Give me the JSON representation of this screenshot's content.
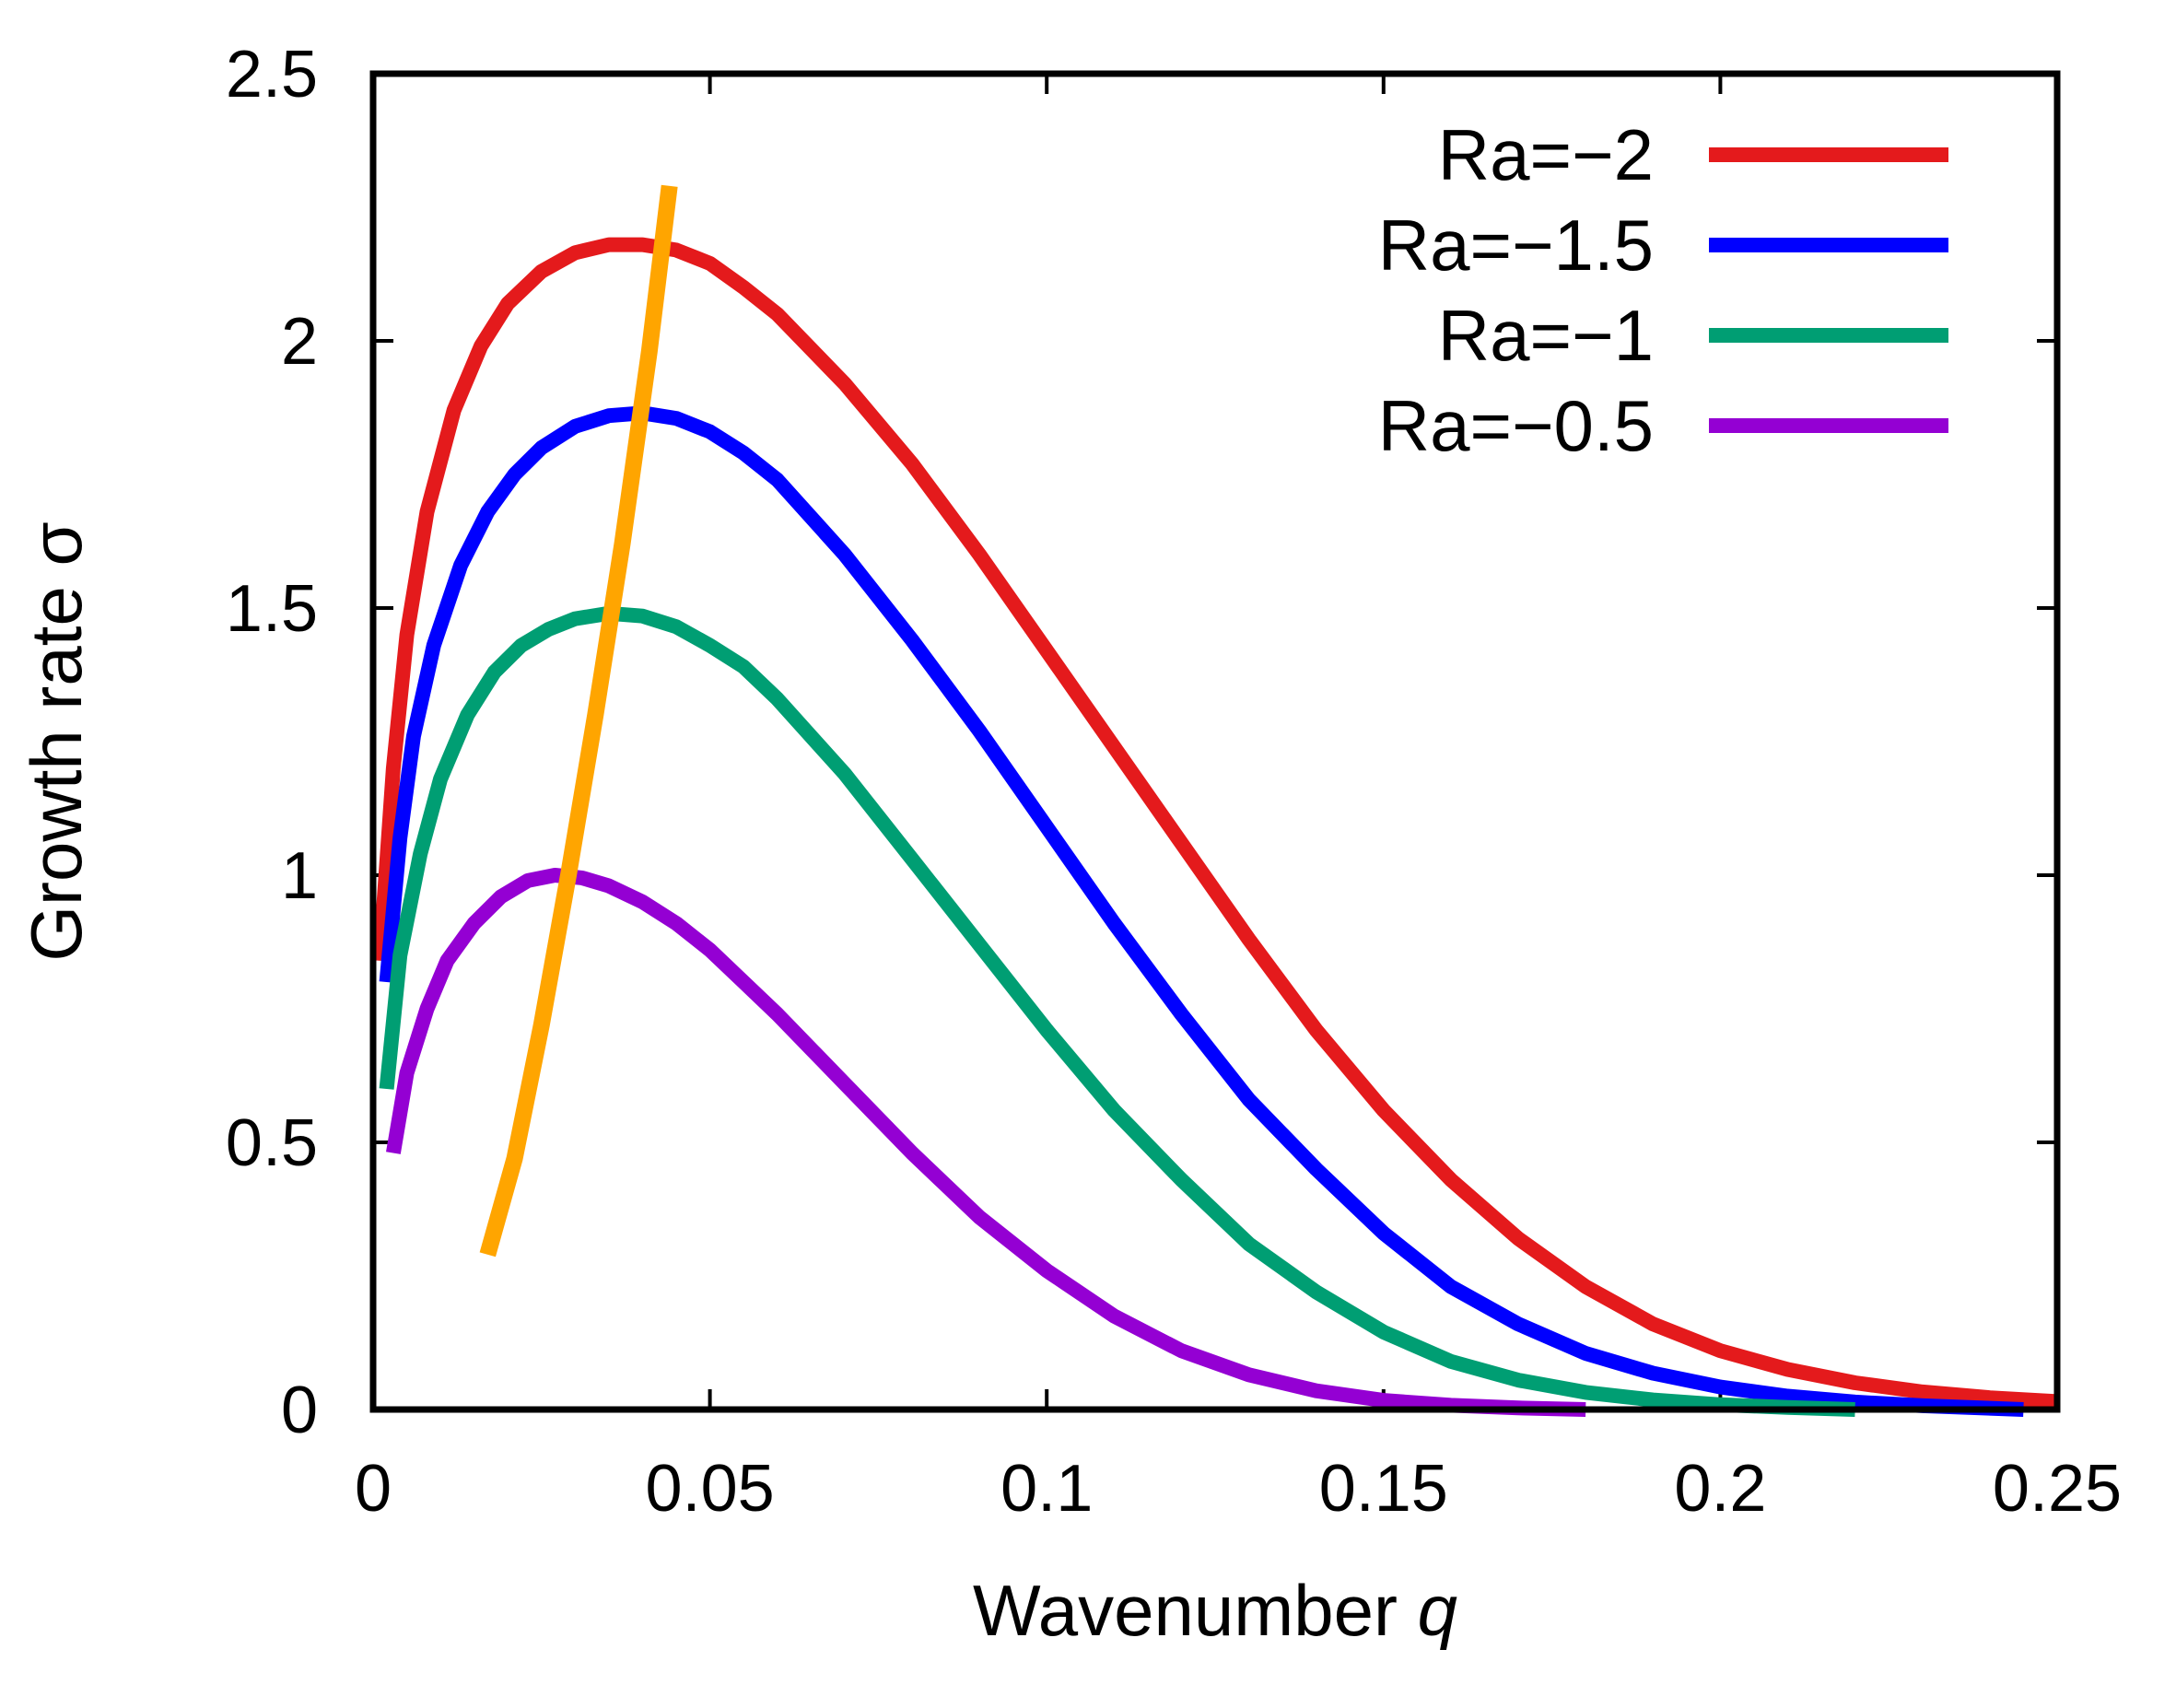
{
  "chart_data": {
    "type": "line",
    "xlabel": "Wavenumber",
    "xlabel_var": "q",
    "ylabel": "Growth rate σ",
    "xlim": [
      0,
      0.25
    ],
    "ylim": [
      0,
      2.5
    ],
    "xticks": [
      0,
      0.05,
      0.1,
      0.15,
      0.2,
      0.25
    ],
    "xtick_labels": [
      "0",
      "0.05",
      "0.1",
      "0.15",
      "0.2",
      "0.25"
    ],
    "yticks": [
      0,
      0.5,
      1,
      1.5,
      2,
      2.5
    ],
    "ytick_labels": [
      "0",
      "0.5",
      "1",
      "1.5",
      "2",
      "2.5"
    ],
    "legend_position": "top-right",
    "series": [
      {
        "name": "Ra=−2",
        "color": "#e41a1c",
        "x": [
          0.001,
          0.003,
          0.005,
          0.008,
          0.012,
          0.016,
          0.02,
          0.025,
          0.03,
          0.035,
          0.04,
          0.045,
          0.05,
          0.055,
          0.06,
          0.07,
          0.08,
          0.09,
          0.1,
          0.11,
          0.12,
          0.13,
          0.14,
          0.15,
          0.16,
          0.17,
          0.18,
          0.19,
          0.2,
          0.21,
          0.22,
          0.23,
          0.24,
          0.25
        ],
        "y": [
          0.84,
          1.2,
          1.45,
          1.68,
          1.87,
          1.99,
          2.07,
          2.13,
          2.165,
          2.18,
          2.18,
          2.17,
          2.145,
          2.1,
          2.05,
          1.92,
          1.77,
          1.6,
          1.42,
          1.24,
          1.06,
          0.88,
          0.71,
          0.56,
          0.43,
          0.32,
          0.23,
          0.16,
          0.11,
          0.075,
          0.05,
          0.033,
          0.022,
          0.015
        ]
      },
      {
        "name": "Ra=−1.5",
        "color": "#0000ff",
        "x": [
          0.002,
          0.004,
          0.006,
          0.009,
          0.013,
          0.017,
          0.021,
          0.025,
          0.03,
          0.035,
          0.04,
          0.045,
          0.05,
          0.055,
          0.06,
          0.07,
          0.08,
          0.09,
          0.1,
          0.11,
          0.12,
          0.13,
          0.14,
          0.15,
          0.16,
          0.17,
          0.18,
          0.19,
          0.2,
          0.21,
          0.22,
          0.23,
          0.245
        ],
        "y": [
          0.8,
          1.07,
          1.26,
          1.43,
          1.58,
          1.68,
          1.75,
          1.8,
          1.84,
          1.86,
          1.865,
          1.855,
          1.83,
          1.79,
          1.74,
          1.6,
          1.44,
          1.27,
          1.09,
          0.91,
          0.74,
          0.58,
          0.45,
          0.33,
          0.23,
          0.16,
          0.105,
          0.068,
          0.042,
          0.025,
          0.014,
          0.007,
          0.0
        ]
      },
      {
        "name": "Ra=−1",
        "color": "#009e73",
        "x": [
          0.002,
          0.004,
          0.007,
          0.01,
          0.014,
          0.018,
          0.022,
          0.026,
          0.03,
          0.035,
          0.04,
          0.045,
          0.05,
          0.055,
          0.06,
          0.07,
          0.08,
          0.09,
          0.1,
          0.11,
          0.12,
          0.13,
          0.14,
          0.15,
          0.16,
          0.17,
          0.18,
          0.19,
          0.2,
          0.21,
          0.22
        ],
        "y": [
          0.6,
          0.85,
          1.04,
          1.18,
          1.3,
          1.38,
          1.43,
          1.46,
          1.48,
          1.49,
          1.485,
          1.465,
          1.43,
          1.39,
          1.33,
          1.19,
          1.03,
          0.87,
          0.71,
          0.56,
          0.43,
          0.31,
          0.22,
          0.145,
          0.09,
          0.055,
          0.032,
          0.018,
          0.009,
          0.004,
          0.0
        ]
      },
      {
        "name": "Ra=−0.5",
        "color": "#9400d3",
        "x": [
          0.003,
          0.005,
          0.008,
          0.011,
          0.015,
          0.019,
          0.023,
          0.027,
          0.031,
          0.035,
          0.04,
          0.045,
          0.05,
          0.055,
          0.06,
          0.07,
          0.08,
          0.09,
          0.1,
          0.11,
          0.12,
          0.13,
          0.14,
          0.15,
          0.16,
          0.17,
          0.18
        ],
        "y": [
          0.48,
          0.63,
          0.75,
          0.84,
          0.91,
          0.96,
          0.99,
          1.0,
          0.995,
          0.98,
          0.95,
          0.91,
          0.86,
          0.8,
          0.74,
          0.61,
          0.48,
          0.36,
          0.26,
          0.175,
          0.11,
          0.065,
          0.035,
          0.017,
          0.008,
          0.003,
          0.0
        ]
      }
    ],
    "annotation_line": {
      "color": "#ffa500",
      "x": [
        0.017,
        0.021,
        0.025,
        0.029,
        0.033,
        0.037,
        0.041,
        0.044
      ],
      "y": [
        0.29,
        0.47,
        0.72,
        1.0,
        1.3,
        1.62,
        1.98,
        2.29
      ]
    }
  }
}
